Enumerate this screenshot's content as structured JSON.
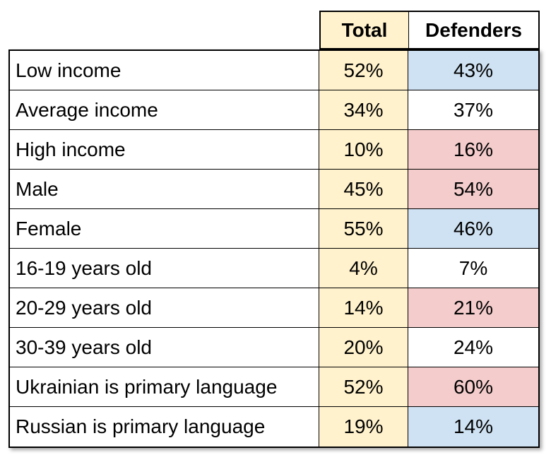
{
  "chart_data": {
    "type": "table",
    "columns": [
      "Total",
      "Defenders"
    ],
    "rows": [
      {
        "label": "Low income",
        "total": "52%",
        "defenders": "43%",
        "highlight": "blue"
      },
      {
        "label": "Average income",
        "total": "34%",
        "defenders": "37%",
        "highlight": "none"
      },
      {
        "label": "High income",
        "total": "10%",
        "defenders": "16%",
        "highlight": "red"
      },
      {
        "label": "Male",
        "total": "45%",
        "defenders": "54%",
        "highlight": "red"
      },
      {
        "label": "Female",
        "total": "55%",
        "defenders": "46%",
        "highlight": "blue"
      },
      {
        "label": "16-19 years old",
        "total": "4%",
        "defenders": "7%",
        "highlight": "none"
      },
      {
        "label": "20-29 years old",
        "total": "14%",
        "defenders": "21%",
        "highlight": "red"
      },
      {
        "label": "30-39 years old",
        "total": "20%",
        "defenders": "24%",
        "highlight": "none"
      },
      {
        "label": "Ukrainian is primary language",
        "total": "52%",
        "defenders": "60%",
        "highlight": "red"
      },
      {
        "label": "Russian is primary language",
        "total": "19%",
        "defenders": "14%",
        "highlight": "blue"
      }
    ]
  },
  "colors": {
    "total_column": "#fff2cc",
    "highlight_blue": "#cfe2f3",
    "highlight_red": "#f4cccc",
    "border": "#000000"
  }
}
